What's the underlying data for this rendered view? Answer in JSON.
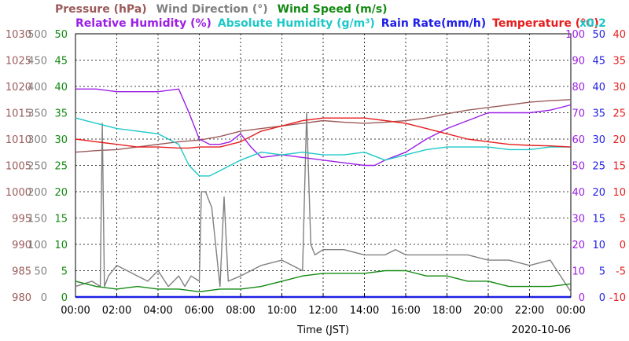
{
  "chart_data": {
    "type": "line",
    "date": "2020-10-06",
    "xlabel": "Time (JST)",
    "x_ticks": [
      "00:00",
      "02:00",
      "04:00",
      "06:00",
      "08:00",
      "10:00",
      "12:00",
      "14:00",
      "16:00",
      "18:00",
      "20:00",
      "22:00",
      "00:00"
    ],
    "xlim_hours": [
      0,
      24
    ],
    "grid": true,
    "legend": {
      "row1": [
        {
          "label": "Pressure (hPa)",
          "color": "#9b5a5a"
        },
        {
          "label": "Wind Direction (°)",
          "color": "#808080"
        },
        {
          "label": "Wind Speed (m/s)",
          "color": "#128a12"
        }
      ],
      "row2": [
        {
          "label": "Relative Humidity (%)",
          "color": "#9b1ee6"
        },
        {
          "label": "Absolute Humidity (g/m³)",
          "color": "#1ec8c8"
        },
        {
          "label": "Rain Rate(mm/h)",
          "color": "#1e1ee6"
        },
        {
          "label": "Temperature (°C)",
          "color": "#e61e1e"
        }
      ],
      "multiplier": {
        "label": "x0.2",
        "color": "#1ec8c8"
      }
    },
    "axes": [
      {
        "name": "Pressure",
        "unit": "hPa",
        "color": "#9b5a5a",
        "range": [
          980,
          1030
        ],
        "ticks": [
          "980",
          "985",
          "990",
          "995",
          "1000",
          "1005",
          "1010",
          "1015",
          "1020",
          "1025",
          "1030"
        ]
      },
      {
        "name": "Wind Direction",
        "unit": "°",
        "color": "#808080",
        "range": [
          0,
          500
        ],
        "ticks": [
          "0",
          "50",
          "100",
          "150",
          "200",
          "250",
          "300",
          "350",
          "400",
          "450",
          "500"
        ]
      },
      {
        "name": "Wind Speed",
        "unit": "m/s",
        "color": "#128a12",
        "range": [
          0,
          50
        ],
        "ticks": [
          "0",
          "5",
          "10",
          "15",
          "20",
          "25",
          "30",
          "35",
          "40",
          "45",
          "50"
        ]
      },
      {
        "name": "Relative Humidity",
        "unit": "%",
        "color": "#9b1ee6",
        "range": [
          0,
          100
        ],
        "ticks": [
          "0",
          "10",
          "20",
          "30",
          "40",
          "50",
          "60",
          "70",
          "80",
          "90",
          "100"
        ]
      },
      {
        "name": "Rain Rate",
        "unit": "mm/h",
        "color": "#1e1ee6",
        "range": [
          0,
          50
        ],
        "ticks": [
          "0",
          "5",
          "10",
          "15",
          "20",
          "25",
          "30",
          "35",
          "40",
          "45",
          "50"
        ]
      },
      {
        "name": "Temperature",
        "unit": "°C",
        "color": "#e61e1e",
        "range": [
          -10,
          40
        ],
        "ticks": [
          "-10",
          "-5",
          "0",
          "5",
          "10",
          "15",
          "20",
          "25",
          "30",
          "35",
          "40"
        ]
      }
    ],
    "series": [
      {
        "name": "Pressure",
        "axis": "Pressure",
        "color": "#9b5a5a",
        "x": [
          0,
          1,
          2,
          3,
          4,
          5,
          6,
          7,
          8,
          9,
          10,
          11,
          12,
          13,
          14,
          15,
          16,
          17,
          18,
          19,
          20,
          21,
          22,
          23,
          24
        ],
        "y": [
          1007.5,
          1007.8,
          1008,
          1008.5,
          1009,
          1009.5,
          1009.8,
          1010.5,
          1011.5,
          1012,
          1012.5,
          1013,
          1013.5,
          1013.2,
          1013,
          1013.2,
          1013.5,
          1014,
          1014.8,
          1015.5,
          1016,
          1016.5,
          1017,
          1017.3,
          1017.5
        ]
      },
      {
        "name": "Wind Direction",
        "axis": "Wind Direction",
        "color": "#808080",
        "x": [
          0,
          0.8,
          1.2,
          1.3,
          1.4,
          1.6,
          2,
          3,
          3.5,
          4,
          4.5,
          5,
          5.3,
          5.6,
          6,
          6.1,
          6.3,
          6.6,
          7,
          7.2,
          7.4,
          8,
          9,
          10,
          11,
          11.2,
          11.4,
          11.6,
          12,
          13,
          14,
          15,
          15.5,
          16,
          17,
          18,
          19,
          20,
          21,
          22,
          23,
          24
        ],
        "y": [
          20,
          30,
          20,
          330,
          20,
          40,
          60,
          40,
          30,
          50,
          20,
          40,
          20,
          40,
          30,
          200,
          200,
          170,
          20,
          190,
          30,
          40,
          60,
          70,
          50,
          350,
          100,
          80,
          90,
          90,
          80,
          80,
          90,
          80,
          80,
          80,
          80,
          70,
          70,
          60,
          70,
          10
        ]
      },
      {
        "name": "Wind Speed",
        "axis": "Wind Speed",
        "color": "#128a12",
        "x": [
          0,
          1,
          2,
          3,
          4,
          5,
          6,
          7,
          8,
          9,
          10,
          11,
          12,
          13,
          14,
          15,
          16,
          17,
          18,
          19,
          20,
          21,
          22,
          23,
          24
        ],
        "y": [
          3,
          2,
          1.5,
          2,
          1.5,
          1.5,
          1,
          1.5,
          1.5,
          2,
          3,
          4,
          4.5,
          4.5,
          4.5,
          5,
          5,
          4,
          4,
          3,
          3,
          2,
          2,
          2,
          2.5
        ]
      },
      {
        "name": "Relative Humidity",
        "axis": "Relative Humidity",
        "color": "#9b1ee6",
        "x": [
          0,
          1,
          2,
          3,
          4,
          5,
          5.5,
          6,
          6.5,
          7,
          7.5,
          8,
          8.5,
          9,
          10,
          11,
          12,
          13,
          14,
          14.5,
          15,
          16,
          17,
          18,
          19,
          20,
          21,
          22,
          23,
          24
        ],
        "y": [
          79,
          79,
          78,
          78,
          78,
          79,
          70,
          60,
          58,
          58,
          59,
          62,
          57,
          53,
          54,
          53,
          52,
          51,
          50,
          50,
          52,
          55,
          60,
          64,
          67,
          70,
          70,
          70,
          71,
          73
        ]
      },
      {
        "name": "Absolute Humidity",
        "axis": "Wind Speed",
        "color": "#1ec8c8",
        "x": [
          0,
          1,
          2,
          3,
          4,
          5,
          5.5,
          6,
          6.5,
          7,
          7.5,
          8,
          9,
          10,
          11,
          12,
          13,
          14,
          15,
          16,
          17,
          18,
          19,
          20,
          21,
          22,
          23,
          24
        ],
        "y": [
          34,
          33,
          32,
          31.5,
          31,
          29,
          25,
          23,
          23,
          24,
          25,
          26,
          27.5,
          27,
          27.5,
          27,
          27,
          27.5,
          26,
          27,
          28,
          28.5,
          28.5,
          28.5,
          28,
          28,
          28.5,
          28.5
        ]
      },
      {
        "name": "Rain Rate",
        "axis": "Rain Rate",
        "color": "#1e1ee6",
        "x": [
          0,
          24
        ],
        "y": [
          0,
          0
        ]
      },
      {
        "name": "Temperature",
        "axis": "Temperature",
        "color": "#e61e1e",
        "x": [
          0,
          1,
          2,
          3,
          4,
          5,
          5.5,
          6,
          7,
          8,
          9,
          10,
          11,
          12,
          13,
          14,
          15,
          16,
          17,
          18,
          19,
          20,
          21,
          22,
          23,
          24
        ],
        "y": [
          20,
          19.5,
          19,
          18.5,
          18.5,
          18.3,
          18.3,
          18.5,
          18.5,
          19.5,
          21.5,
          22.5,
          23.5,
          24,
          24,
          24,
          23.5,
          23,
          22,
          21,
          20,
          19.5,
          19,
          18.8,
          18.7,
          18.5
        ]
      }
    ]
  }
}
